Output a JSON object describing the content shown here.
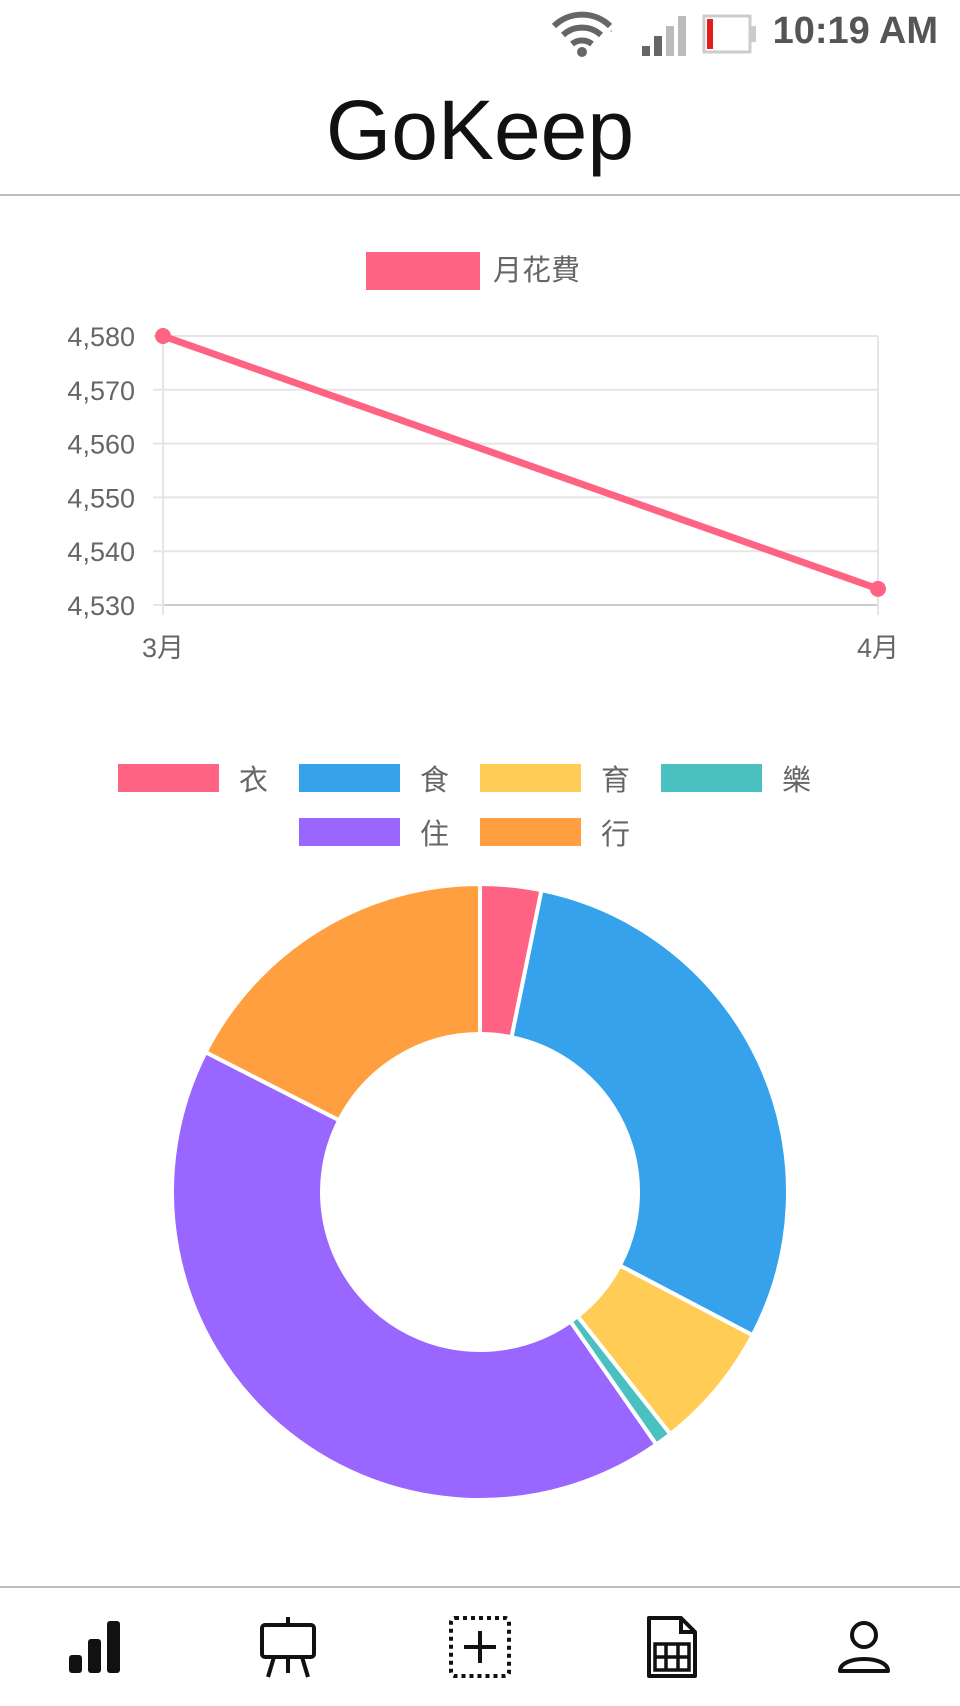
{
  "status_bar": {
    "time": "10:19 AM",
    "icons": [
      "wifi-icon",
      "signal-icon",
      "battery-low-icon"
    ],
    "battery_color": "#e02020"
  },
  "app": {
    "title": "GoKeep"
  },
  "line_chart": {
    "type": "line",
    "legend": "月花費",
    "color": "#ff6384",
    "categories": [
      "3月",
      "4月"
    ],
    "values": [
      4580,
      4533
    ],
    "ylim": [
      4530,
      4580
    ],
    "yticks": [
      "4,580",
      "4,570",
      "4,560",
      "4,550",
      "4,540",
      "4,530"
    ],
    "ytick_values": [
      4580,
      4570,
      4560,
      4550,
      4540,
      4530
    ],
    "grid": true,
    "legend_position": "top"
  },
  "chart_data": [
    {
      "type": "line",
      "series": [
        {
          "name": "月花費",
          "values": [
            4580,
            4533
          ]
        }
      ],
      "categories": [
        "3月",
        "4月"
      ],
      "ylim": [
        4530,
        4580
      ],
      "grid": true,
      "legend_position": "top"
    },
    {
      "type": "pie",
      "variant": "doughnut",
      "categories": [
        "衣",
        "食",
        "育",
        "樂",
        "住",
        "行"
      ],
      "values": [
        3.2,
        29.5,
        6.7,
        0.9,
        42.2,
        17.5
      ],
      "colors": [
        "#ff6384",
        "#36a2eb",
        "#ffcd56",
        "#4bc0c0",
        "#9966ff",
        "#ff9f40"
      ],
      "legend_position": "top"
    }
  ],
  "donut_chart": {
    "legend": [
      "衣",
      "食",
      "育",
      "樂",
      "住",
      "行"
    ],
    "values": [
      3.2,
      29.5,
      6.7,
      0.9,
      42.2,
      17.5
    ],
    "colors": [
      "#ff6384",
      "#36a2eb",
      "#ffcd56",
      "#4bc0c0",
      "#9966ff",
      "#ff9f40"
    ]
  },
  "tab_bar": {
    "tabs": [
      {
        "icon": "bar-chart-icon",
        "active": true
      },
      {
        "icon": "easel-icon",
        "active": false
      },
      {
        "icon": "add-box-icon",
        "active": false
      },
      {
        "icon": "spreadsheet-icon",
        "active": false
      },
      {
        "icon": "person-icon",
        "active": false
      }
    ]
  }
}
